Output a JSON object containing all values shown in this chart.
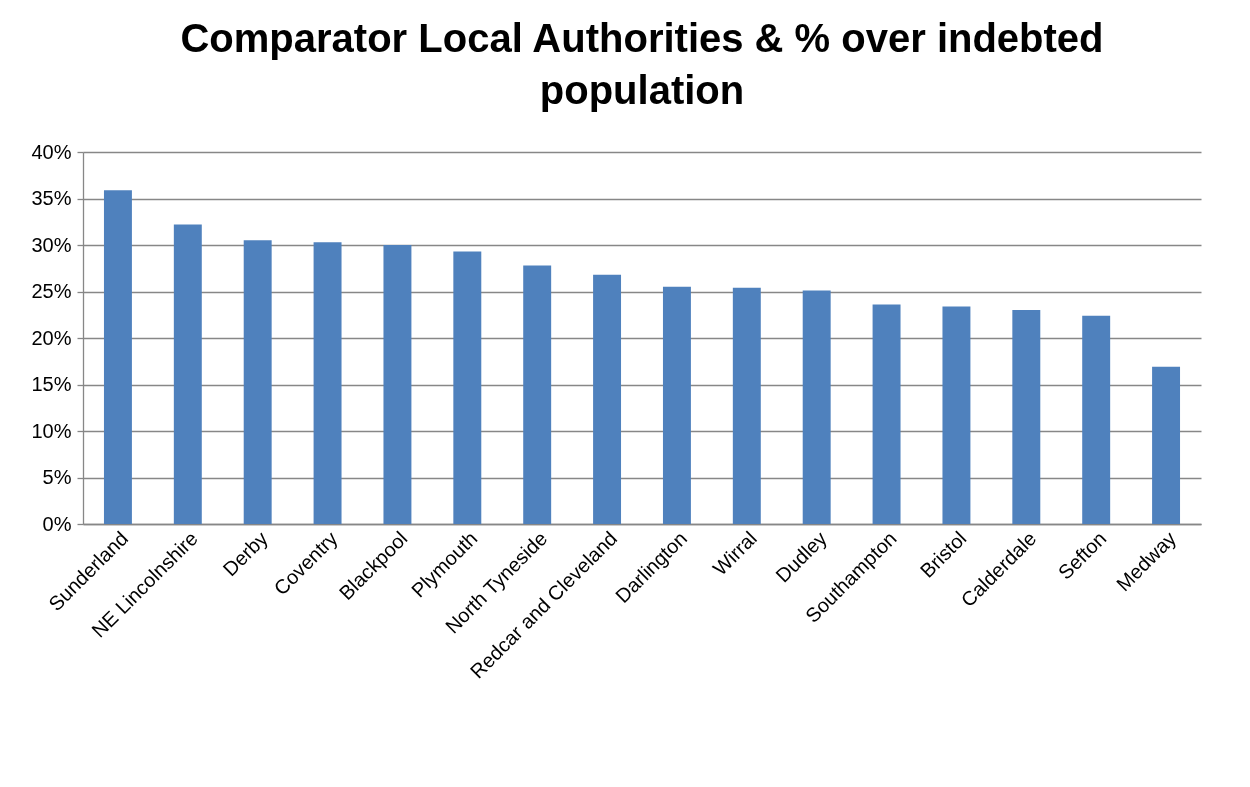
{
  "chart_data": {
    "type": "bar",
    "title": "Comparator Local Authorities & % over indebted population",
    "categories": [
      "Sunderland",
      "NE Lincolnshire",
      "Derby",
      "Coventry",
      "Blackpool",
      "Plymouth",
      "North Tyneside",
      "Redcar and Cleveland",
      "Darlington",
      "Wirral",
      "Dudley",
      "Southampton",
      "Bristol",
      "Calderdale",
      "Sefton",
      "Medway"
    ],
    "values": [
      35.9,
      32.2,
      30.5,
      30.3,
      30.0,
      29.3,
      27.8,
      26.8,
      25.5,
      25.4,
      25.1,
      23.6,
      23.4,
      23.0,
      22.4,
      16.9
    ],
    "color": "#4f81bd",
    "ylim": [
      0,
      40
    ],
    "yticks": [
      {
        "value": 0,
        "label": "0%"
      },
      {
        "value": 5,
        "label": "5%"
      },
      {
        "value": 10,
        "label": "10%"
      },
      {
        "value": 15,
        "label": "15%"
      },
      {
        "value": 20,
        "label": "20%"
      },
      {
        "value": 25,
        "label": "25%"
      },
      {
        "value": 30,
        "label": "30%"
      },
      {
        "value": 35,
        "label": "35%"
      },
      {
        "value": 40,
        "label": "40%"
      }
    ],
    "grid": "y"
  }
}
